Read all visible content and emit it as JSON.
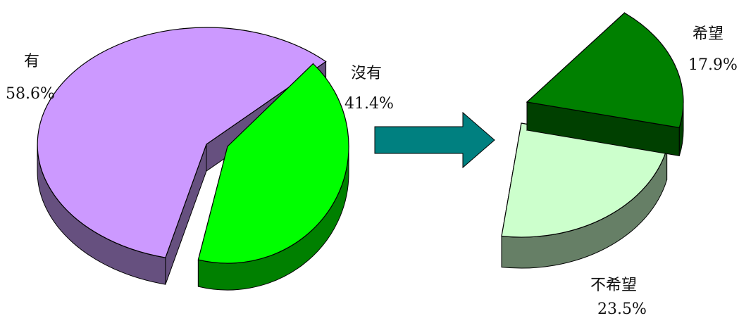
{
  "chart_data": [
    {
      "type": "pie",
      "slices": [
        {
          "label": "有",
          "value": 58.6,
          "value_label": "58.6%",
          "color": "#cc99ff",
          "side_color": "#66507f",
          "exploded": false
        },
        {
          "label": "沒有",
          "value": 41.4,
          "value_label": "41.4%",
          "color": "#00ff00",
          "side_color": "#008000",
          "exploded": true
        }
      ]
    },
    {
      "type": "pie",
      "partial": true,
      "slices": [
        {
          "label": "希望",
          "value": 17.9,
          "value_label": "17.9%",
          "color": "#008000",
          "side_color": "#004000",
          "exploded": true
        },
        {
          "label": "不希望",
          "value": 23.5,
          "value_label": "23.5%",
          "color": "#ccffcc",
          "side_color": "#667f66",
          "exploded": false
        }
      ]
    }
  ],
  "connector": {
    "icon": "arrow-right-icon",
    "color": "#008080"
  }
}
